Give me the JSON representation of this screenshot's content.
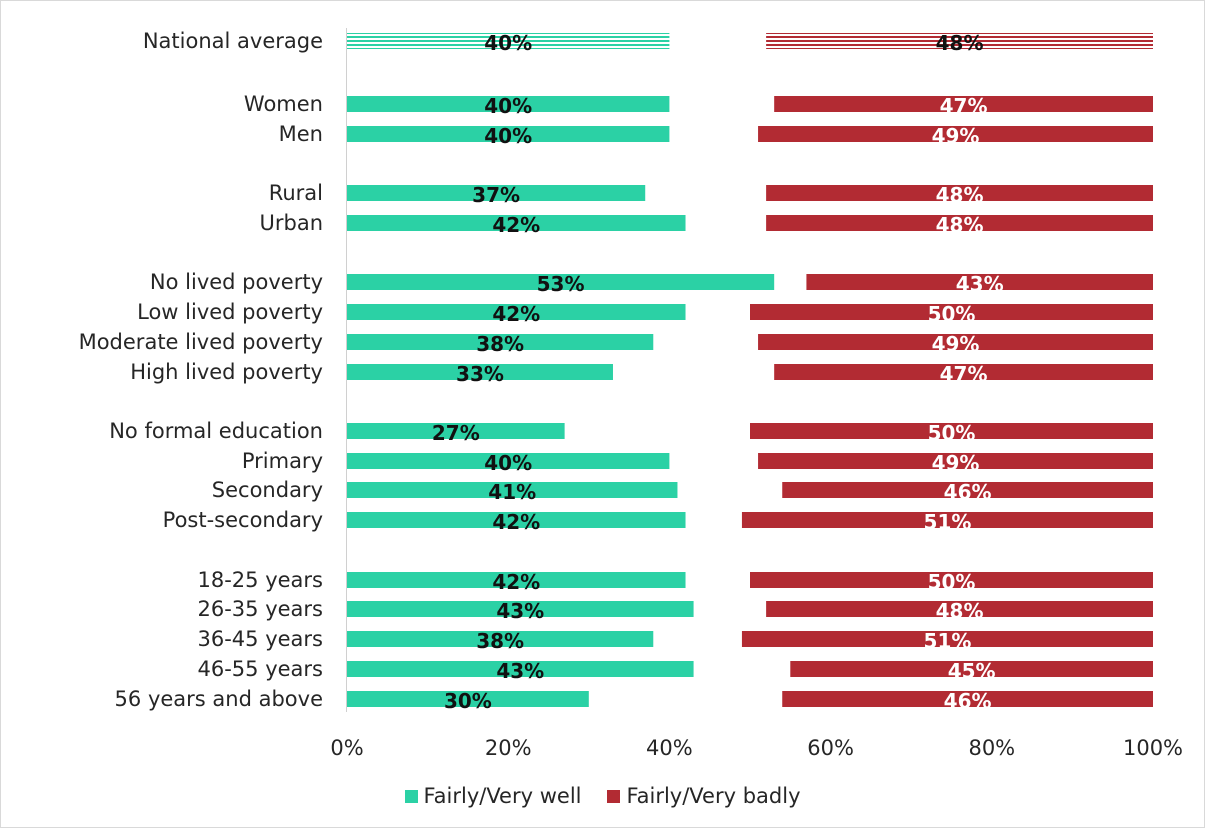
{
  "chart_data": {
    "type": "bar",
    "orientation": "horizontal",
    "categories": [
      "National average",
      "Women",
      "Men",
      "Rural",
      "Urban",
      "No lived poverty",
      "Low lived poverty",
      "Moderate lived poverty",
      "High lived poverty",
      "No formal education",
      "Primary",
      "Secondary",
      "Post-secondary",
      "18-25 years",
      "26-35 years",
      "36-45 years",
      "46-55 years",
      "56 years and above"
    ],
    "series": [
      {
        "name": "Fairly/Very well",
        "color": "#2bd1a5",
        "values": [
          40,
          40,
          40,
          37,
          42,
          53,
          42,
          38,
          33,
          27,
          40,
          41,
          42,
          42,
          43,
          38,
          43,
          30
        ],
        "labels": [
          "40%",
          "40%",
          "40%",
          "37%",
          "42%",
          "53%",
          "42%",
          "38%",
          "33%",
          "27%",
          "40%",
          "41%",
          "42%",
          "42%",
          "43%",
          "38%",
          "43%",
          "30%"
        ]
      },
      {
        "name": "Fairly/Very badly",
        "color": "#b22b33",
        "values": [
          48,
          47,
          49,
          48,
          48,
          43,
          50,
          49,
          47,
          50,
          49,
          46,
          51,
          50,
          48,
          51,
          45,
          46
        ],
        "labels": [
          "48%",
          "47%",
          "49%",
          "48%",
          "48%",
          "43%",
          "50%",
          "49%",
          "47%",
          "50%",
          "49%",
          "46%",
          "51%",
          "50%",
          "48%",
          "51%",
          "45%",
          "46%"
        ]
      }
    ],
    "xlim": [
      0,
      100
    ],
    "x_ticks": [
      "0%",
      "20%",
      "40%",
      "60%",
      "80%",
      "100%"
    ],
    "legend_position": "bottom",
    "grid": false
  }
}
